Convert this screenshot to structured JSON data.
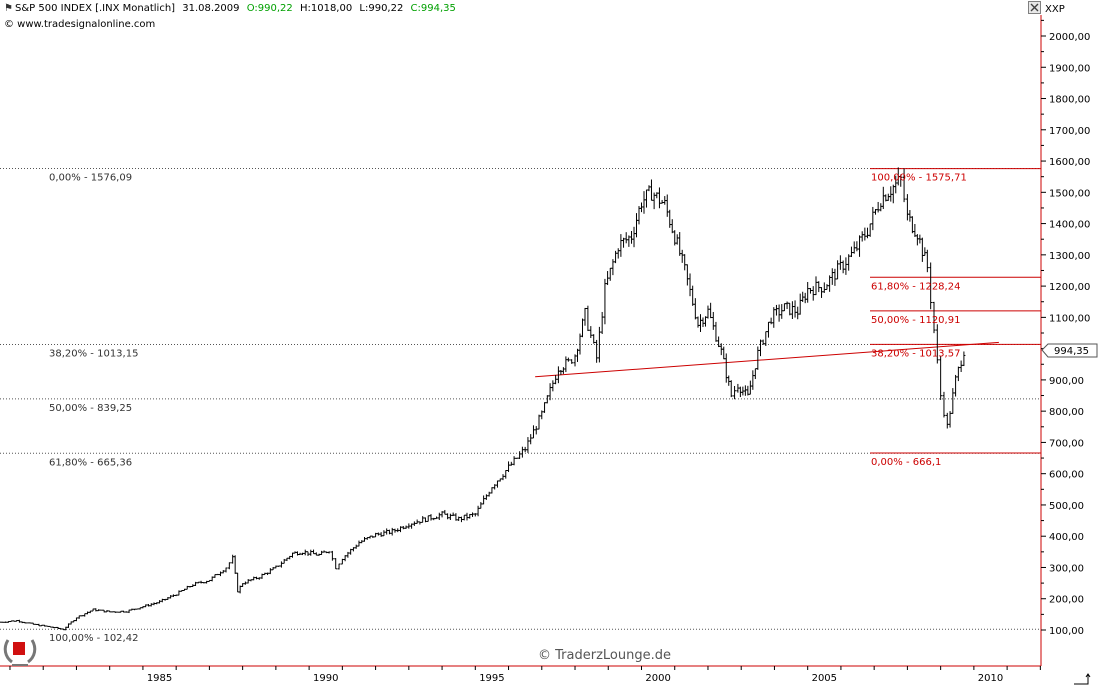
{
  "header": {
    "instrument": "S&P 500 INDEX [.INX  Monatlich]",
    "date": "31.08.2009",
    "open": "O:990,22",
    "high": "H:1018,00",
    "low": "L:990,22",
    "close": "C:994,35",
    "copyright": "© www.tradesignalonline.com"
  },
  "axis_title": "XXP",
  "watermark": "© TraderzLounge.de",
  "price_tag": "994,35",
  "colors": {
    "price": "#000000",
    "fib": "#cc0000",
    "axis": "#cc0000",
    "grid": "#555555",
    "label": "#333333"
  },
  "icons": {
    "close": "close-x-icon",
    "resize": "resize-corner-icon",
    "logo": "laurel-wreath-logo-icon"
  },
  "left_fib_levels": [
    {
      "label": "0,00% - 1576,09",
      "value": 1576.09
    },
    {
      "label": "38,20% - 1013,15",
      "value": 1013.15
    },
    {
      "label": "50,00% - 839,25",
      "value": 839.25
    },
    {
      "label": "61,80% - 665,36",
      "value": 665.36
    },
    {
      "label": "100,00% - 102,42",
      "value": 102.42
    }
  ],
  "right_fib_levels": [
    {
      "label": "100,00% - 1575,71",
      "value": 1575.71
    },
    {
      "label": "61,80% - 1228,24",
      "value": 1228.24
    },
    {
      "label": "50,00% - 1120,91",
      "value": 1120.91
    },
    {
      "label": "38,20% - 1013,57",
      "value": 1013.57
    },
    {
      "label": "0,00% - 666,1",
      "value": 666.1
    }
  ],
  "trendline": {
    "from": {
      "x": 1996.8,
      "y": 910
    },
    "to": {
      "x": 2009.7,
      "y": 1013.57
    }
  },
  "chart_data": {
    "type": "line",
    "title": "S&P 500 INDEX [.INX  Monatlich]",
    "xlabel": "",
    "ylabel": "",
    "xlim": [
      1980.7,
      2012.2
    ],
    "ylim": [
      0,
      2100
    ],
    "x_ticks": [
      {
        "value": 1985.5,
        "label": "1985"
      },
      {
        "value": 1990.5,
        "label": "1990"
      },
      {
        "value": 1995.5,
        "label": "1995"
      },
      {
        "value": 2000.5,
        "label": "2000"
      },
      {
        "value": 2005.5,
        "label": "2005"
      },
      {
        "value": 2010.5,
        "label": "2010"
      }
    ],
    "y_ticks": [
      {
        "value": 100,
        "label": "100,00"
      },
      {
        "value": 200,
        "label": "200,00"
      },
      {
        "value": 300,
        "label": "300,00"
      },
      {
        "value": 400,
        "label": "400,00"
      },
      {
        "value": 500,
        "label": "500,00"
      },
      {
        "value": 600,
        "label": "600,00"
      },
      {
        "value": 700,
        "label": "700,00"
      },
      {
        "value": 800,
        "label": "800,00"
      },
      {
        "value": 900,
        "label": "900,00"
      },
      {
        "value": 1000,
        "label": "1000,00"
      },
      {
        "value": 1100,
        "label": "1100,00"
      },
      {
        "value": 1200,
        "label": "1200,00"
      },
      {
        "value": 1300,
        "label": "1300,00"
      },
      {
        "value": 1400,
        "label": "1400,00"
      },
      {
        "value": 1500,
        "label": "1500,00"
      },
      {
        "value": 1600,
        "label": "1600,00"
      },
      {
        "value": 1700,
        "label": "1700,00"
      },
      {
        "value": 1800,
        "label": "1800,00"
      },
      {
        "value": 1900,
        "label": "1900,00"
      },
      {
        "value": 2000,
        "label": "2000,00"
      }
    ],
    "series": [
      {
        "values": [
          [
            1980.7,
            125
          ],
          [
            1981.2,
            130
          ],
          [
            1981.7,
            118
          ],
          [
            1982.3,
            108
          ],
          [
            1982.6,
            102
          ],
          [
            1983.0,
            140
          ],
          [
            1983.5,
            165
          ],
          [
            1984.0,
            158
          ],
          [
            1984.5,
            160
          ],
          [
            1985.0,
            175
          ],
          [
            1985.5,
            190
          ],
          [
            1986.0,
            215
          ],
          [
            1986.5,
            245
          ],
          [
            1987.0,
            260
          ],
          [
            1987.5,
            300
          ],
          [
            1987.7,
            330
          ],
          [
            1987.85,
            225
          ],
          [
            1988.0,
            250
          ],
          [
            1988.5,
            270
          ],
          [
            1989.0,
            300
          ],
          [
            1989.5,
            345
          ],
          [
            1989.8,
            350
          ],
          [
            1990.3,
            340
          ],
          [
            1990.6,
            355
          ],
          [
            1990.8,
            300
          ],
          [
            1991.0,
            330
          ],
          [
            1991.5,
            380
          ],
          [
            1992.0,
            405
          ],
          [
            1992.5,
            415
          ],
          [
            1993.0,
            440
          ],
          [
            1993.5,
            455
          ],
          [
            1994.0,
            470
          ],
          [
            1994.5,
            455
          ],
          [
            1995.0,
            470
          ],
          [
            1995.5,
            560
          ],
          [
            1996.0,
            620
          ],
          [
            1996.5,
            680
          ],
          [
            1997.0,
            790
          ],
          [
            1997.5,
            940
          ],
          [
            1997.8,
            955
          ],
          [
            1998.0,
            980
          ],
          [
            1998.3,
            1110
          ],
          [
            1998.65,
            970
          ],
          [
            1998.9,
            1190
          ],
          [
            1999.3,
            1330
          ],
          [
            1999.7,
            1360
          ],
          [
            2000.0,
            1470
          ],
          [
            2000.3,
            1500
          ],
          [
            2000.7,
            1460
          ],
          [
            2001.0,
            1360
          ],
          [
            2001.3,
            1250
          ],
          [
            2001.7,
            1080
          ],
          [
            2002.0,
            1120
          ],
          [
            2002.4,
            990
          ],
          [
            2002.7,
            850
          ],
          [
            2002.9,
            885
          ],
          [
            2003.2,
            845
          ],
          [
            2003.5,
            985
          ],
          [
            2003.9,
            1100
          ],
          [
            2004.3,
            1130
          ],
          [
            2004.7,
            1120
          ],
          [
            2005.0,
            1190
          ],
          [
            2005.5,
            1200
          ],
          [
            2005.9,
            1250
          ],
          [
            2006.4,
            1310
          ],
          [
            2006.8,
            1380
          ],
          [
            2007.2,
            1480
          ],
          [
            2007.5,
            1510
          ],
          [
            2007.8,
            1540
          ],
          [
            2008.0,
            1420
          ],
          [
            2008.3,
            1370
          ],
          [
            2008.6,
            1260
          ],
          [
            2008.8,
            1060
          ],
          [
            2009.0,
            850
          ],
          [
            2009.2,
            750
          ],
          [
            2009.45,
            900
          ],
          [
            2009.7,
            994.35
          ]
        ]
      }
    ]
  }
}
